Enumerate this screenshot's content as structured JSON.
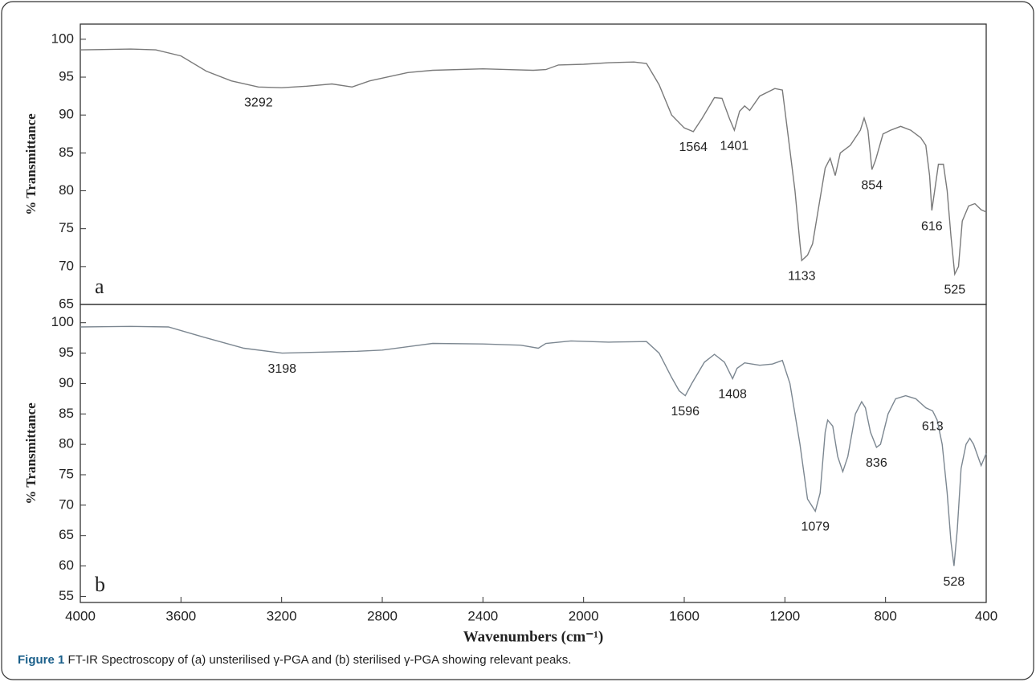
{
  "chart_data": [
    {
      "type": "line",
      "ylabel": "% Transmittance",
      "panel_label": "a",
      "color": "#7a7a7a",
      "xlim": [
        4000,
        400
      ],
      "ylim": [
        65,
        102
      ],
      "yticks": [
        65,
        70,
        75,
        80,
        85,
        90,
        95,
        100
      ],
      "x": [
        4000,
        3800,
        3700,
        3600,
        3500,
        3400,
        3292,
        3200,
        3100,
        3000,
        2920,
        2850,
        2700,
        2600,
        2400,
        2200,
        2150,
        2100,
        2000,
        1900,
        1800,
        1750,
        1700,
        1650,
        1600,
        1564,
        1530,
        1480,
        1450,
        1420,
        1401,
        1380,
        1360,
        1340,
        1300,
        1240,
        1210,
        1190,
        1160,
        1140,
        1133,
        1110,
        1090,
        1060,
        1040,
        1020,
        1000,
        980,
        940,
        900,
        885,
        870,
        854,
        840,
        810,
        780,
        740,
        700,
        660,
        640,
        625,
        616,
        605,
        590,
        570,
        555,
        540,
        525,
        510,
        495,
        470,
        445,
        420,
        400
      ],
      "values": [
        98.6,
        98.7,
        98.6,
        97.8,
        95.8,
        94.5,
        93.7,
        93.6,
        93.8,
        94.1,
        93.7,
        94.5,
        95.6,
        95.9,
        96.1,
        95.9,
        96.0,
        96.6,
        96.7,
        96.9,
        97.0,
        96.8,
        94,
        90,
        88.3,
        87.8,
        89.5,
        92.3,
        92.2,
        89.5,
        88,
        90.5,
        91.2,
        90.6,
        92.5,
        93.5,
        93.3,
        88,
        80,
        73,
        70.8,
        71.5,
        73,
        79,
        83,
        84.3,
        82,
        85,
        86,
        88,
        89.6,
        88,
        82.8,
        84,
        87.5,
        88,
        88.5,
        88,
        87,
        86,
        82,
        77.4,
        80,
        83.5,
        83.5,
        80,
        74,
        69,
        70,
        76,
        78,
        78.3,
        77.5,
        77.2
      ],
      "annotations": [
        {
          "x": 3292,
          "y": 93.7,
          "label": "3292"
        },
        {
          "x": 1564,
          "y": 87.8,
          "label": "1564"
        },
        {
          "x": 1401,
          "y": 88,
          "label": "1401"
        },
        {
          "x": 1133,
          "y": 70.8,
          "label": "1133"
        },
        {
          "x": 854,
          "y": 82.8,
          "label": "854"
        },
        {
          "x": 616,
          "y": 77.4,
          "label": "616"
        },
        {
          "x": 525,
          "y": 69,
          "label": "525"
        }
      ]
    },
    {
      "type": "line",
      "ylabel": "% Transmittance",
      "panel_label": "b",
      "color": "#7c8791",
      "xlabel": "Wavenumbers (cm⁻¹)",
      "xlim": [
        4000,
        400
      ],
      "ylim": [
        54,
        103
      ],
      "yticks": [
        55,
        60,
        65,
        70,
        75,
        80,
        85,
        90,
        95,
        100
      ],
      "xticks": [
        4000,
        3600,
        3200,
        2800,
        2400,
        2000,
        1600,
        1200,
        800,
        400
      ],
      "x": [
        4000,
        3800,
        3650,
        3500,
        3350,
        3198,
        3100,
        2900,
        2800,
        2600,
        2400,
        2250,
        2180,
        2150,
        2050,
        1900,
        1750,
        1700,
        1650,
        1620,
        1596,
        1570,
        1520,
        1480,
        1440,
        1408,
        1390,
        1360,
        1300,
        1250,
        1210,
        1180,
        1140,
        1110,
        1079,
        1060,
        1040,
        1030,
        1010,
        990,
        970,
        950,
        920,
        895,
        880,
        860,
        836,
        820,
        790,
        760,
        720,
        680,
        640,
        613,
        595,
        575,
        555,
        540,
        528,
        515,
        500,
        480,
        465,
        450,
        420,
        400
      ],
      "values": [
        99.3,
        99.4,
        99.3,
        97.5,
        95.8,
        95.0,
        95.1,
        95.3,
        95.5,
        96.6,
        96.5,
        96.3,
        95.8,
        96.6,
        97.0,
        96.8,
        96.9,
        95,
        91,
        88.8,
        88,
        90,
        93.5,
        94.8,
        93.5,
        90.8,
        92.5,
        93.4,
        93.0,
        93.2,
        93.8,
        90,
        80,
        71,
        69,
        72,
        82,
        84,
        83,
        78,
        75.5,
        78,
        85,
        87,
        86,
        82,
        79.5,
        80,
        85,
        87.5,
        88,
        87.5,
        86,
        85.5,
        84,
        80,
        72,
        64,
        60,
        66,
        76,
        80,
        81,
        80,
        76.5,
        78.5
      ],
      "annotations": [
        {
          "x": 3198,
          "y": 95.0,
          "label": "3198"
        },
        {
          "x": 1596,
          "y": 88,
          "label": "1596"
        },
        {
          "x": 1408,
          "y": 90.8,
          "label": "1408"
        },
        {
          "x": 1079,
          "y": 69,
          "label": "1079"
        },
        {
          "x": 836,
          "y": 79.5,
          "label": "836"
        },
        {
          "x": 613,
          "y": 85.5,
          "label": "613"
        },
        {
          "x": 528,
          "y": 60,
          "label": "528"
        }
      ]
    }
  ],
  "figure": {
    "caption_label": "Figure 1",
    "caption_text": " FT-IR Spectroscopy of (a) unsterilised γ-PGA and (b) sterilised γ-PGA showing relevant peaks."
  }
}
